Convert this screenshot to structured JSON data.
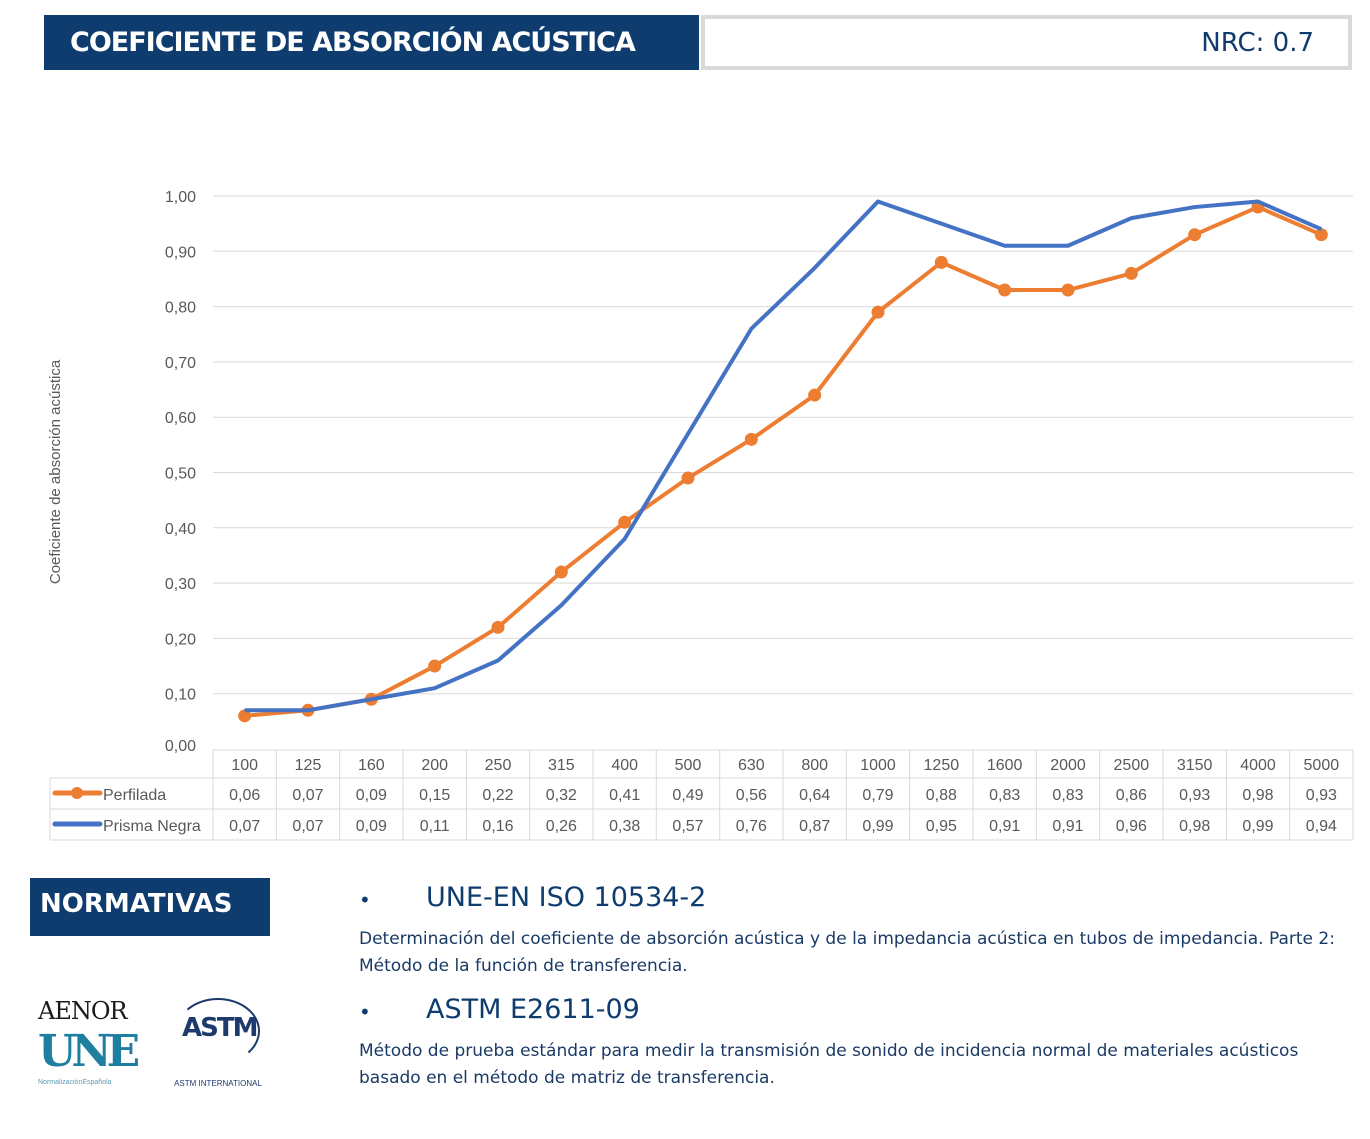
{
  "header": {
    "title": "COEFICIENTE DE ABSORCIÓN ACÚSTICA",
    "nrc": "NRC: 0.7"
  },
  "chart_data": {
    "type": "line",
    "ylabel": "Coeficiente de absorción acústica",
    "ylim": [
      0,
      1
    ],
    "yticks": [
      "0,00",
      "0,10",
      "0,20",
      "0,30",
      "0,40",
      "0,50",
      "0,60",
      "0,70",
      "0,80",
      "0,90",
      "1,00"
    ],
    "grid": true,
    "legend": "data-table",
    "categories": [
      "100",
      "125",
      "160",
      "200",
      "250",
      "315",
      "400",
      "500",
      "630",
      "800",
      "1000",
      "1250",
      "1600",
      "2000",
      "2500",
      "3150",
      "4000",
      "5000"
    ],
    "series": [
      {
        "name": "Perfilada",
        "color": "#ed7d31",
        "markers": true,
        "values": [
          0.06,
          0.07,
          0.09,
          0.15,
          0.22,
          0.32,
          0.41,
          0.49,
          0.56,
          0.64,
          0.79,
          0.88,
          0.83,
          0.83,
          0.86,
          0.93,
          0.98,
          0.93
        ],
        "labels": [
          "0,06",
          "0,07",
          "0,09",
          "0,15",
          "0,22",
          "0,32",
          "0,41",
          "0,49",
          "0,56",
          "0,64",
          "0,79",
          "0,88",
          "0,83",
          "0,83",
          "0,86",
          "0,93",
          "0,98",
          "0,93"
        ]
      },
      {
        "name": "Prisma Negra",
        "color": "#4472c4",
        "markers": false,
        "values": [
          0.07,
          0.07,
          0.09,
          0.11,
          0.16,
          0.26,
          0.38,
          0.57,
          0.76,
          0.87,
          0.99,
          0.95,
          0.91,
          0.91,
          0.96,
          0.98,
          0.99,
          0.94
        ],
        "labels": [
          "0,07",
          "0,07",
          "0,09",
          "0,11",
          "0,16",
          "0,26",
          "0,38",
          "0,57",
          "0,76",
          "0,87",
          "0,99",
          "0,95",
          "0,91",
          "0,91",
          "0,96",
          "0,98",
          "0,99",
          "0,94"
        ]
      }
    ]
  },
  "normativas": {
    "title": "NORMATIVAS",
    "items": [
      {
        "code": "UNE-EN ISO 10534-2",
        "desc": "Determinación del coeficiente de absorción acústica y de la impedancia acústica en tubos de impedancia. Parte 2: Método de la función de transferencia."
      },
      {
        "code": "ASTM E2611-09",
        "desc": "Método de prueba estándar para medir la transmisión de sonido de incidencia normal de materiales acústicos basado en el método de matriz de transferencia."
      }
    ]
  },
  "logos": {
    "aenor": "AENOR",
    "une": "UNE",
    "une_sub": "NormalizaciónEspañola",
    "astm": "ASTM",
    "astm_sub": "ASTM INTERNATIONAL"
  }
}
